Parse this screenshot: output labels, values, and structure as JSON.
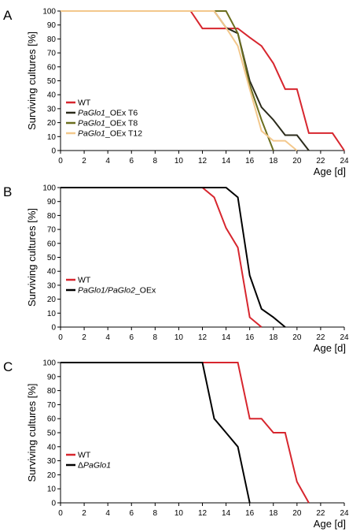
{
  "chart_data": [
    {
      "panel": "A",
      "type": "line",
      "xlabel": "Age [d]",
      "ylabel": "Surviving cultures [%]",
      "xlim": [
        0,
        24
      ],
      "ylim": [
        0,
        100
      ],
      "x_ticks": [
        "0",
        "2",
        "4",
        "6",
        "8",
        "10",
        "12",
        "14",
        "16",
        "18",
        "20",
        "22",
        "24"
      ],
      "y_ticks": [
        "0",
        "10",
        "20",
        "30",
        "40",
        "50",
        "60",
        "70",
        "80",
        "90",
        "100"
      ],
      "legend": "left-lower",
      "series": [
        {
          "name_parts": [
            {
              "text": "WT",
              "italic": false
            }
          ],
          "color": "#d7262e",
          "points": [
            [
              0,
              100
            ],
            [
              11,
              100
            ],
            [
              12,
              87.5
            ],
            [
              14,
              87.5
            ],
            [
              15,
              87.5
            ],
            [
              16,
              81
            ],
            [
              17,
              75
            ],
            [
              18,
              62.5
            ],
            [
              19,
              44
            ],
            [
              20,
              44
            ],
            [
              21,
              12.5
            ],
            [
              23,
              12.5
            ],
            [
              24,
              0
            ]
          ]
        },
        {
          "name_parts": [
            {
              "text": "PaGlo1",
              "italic": true
            },
            {
              "text": "_OEx T6",
              "italic": false
            }
          ],
          "color": "#2b2b1b",
          "points": [
            [
              0,
              100
            ],
            [
              13,
              100
            ],
            [
              14,
              88
            ],
            [
              15,
              84
            ],
            [
              16,
              50
            ],
            [
              17,
              31
            ],
            [
              18,
              22
            ],
            [
              19,
              11
            ],
            [
              20,
              11
            ],
            [
              21,
              0
            ]
          ]
        },
        {
          "name_parts": [
            {
              "text": "PaGlo1",
              "italic": true
            },
            {
              "text": "_OEx T8",
              "italic": false
            }
          ],
          "color": "#6b6e1e",
          "points": [
            [
              0,
              100
            ],
            [
              13,
              100
            ],
            [
              14,
              100
            ],
            [
              15,
              84
            ],
            [
              16,
              47
            ],
            [
              17,
              22
            ],
            [
              18,
              0
            ]
          ]
        },
        {
          "name_parts": [
            {
              "text": "PaGlo1",
              "italic": true
            },
            {
              "text": "_OEx T12",
              "italic": false
            }
          ],
          "color": "#f3c88c",
          "points": [
            [
              0,
              100
            ],
            [
              13,
              100
            ],
            [
              14,
              88
            ],
            [
              15,
              75
            ],
            [
              16,
              44
            ],
            [
              17,
              14
            ],
            [
              18,
              7
            ],
            [
              19,
              7
            ],
            [
              20,
              0
            ]
          ]
        }
      ]
    },
    {
      "panel": "B",
      "type": "line",
      "xlabel": "Age [d]",
      "ylabel": "Surviving cultures [%]",
      "xlim": [
        0,
        24
      ],
      "ylim": [
        0,
        100
      ],
      "x_ticks": [
        "0",
        "2",
        "4",
        "6",
        "8",
        "10",
        "12",
        "14",
        "16",
        "18",
        "20",
        "22",
        "24"
      ],
      "y_ticks": [
        "0",
        "10",
        "20",
        "30",
        "40",
        "50",
        "60",
        "70",
        "80",
        "90",
        "100"
      ],
      "legend": "left-lower",
      "series": [
        {
          "name_parts": [
            {
              "text": "WT",
              "italic": false
            }
          ],
          "color": "#d7262e",
          "points": [
            [
              0,
              100
            ],
            [
              12,
              100
            ],
            [
              13,
              93
            ],
            [
              14,
              71
            ],
            [
              15,
              57
            ],
            [
              16,
              7
            ],
            [
              17,
              0
            ]
          ]
        },
        {
          "name_parts": [
            {
              "text": "PaGlo1/PaGlo2",
              "italic": true
            },
            {
              "text": "_OEx",
              "italic": false
            }
          ],
          "color": "#000000",
          "points": [
            [
              0,
              100
            ],
            [
              14,
              100
            ],
            [
              15,
              93
            ],
            [
              16,
              37
            ],
            [
              17,
              13
            ],
            [
              18,
              7
            ],
            [
              19,
              0
            ]
          ]
        }
      ]
    },
    {
      "panel": "C",
      "type": "line",
      "xlabel": "Age [d]",
      "ylabel": "Surviving cultures [%]",
      "xlim": [
        0,
        24
      ],
      "ylim": [
        0,
        100
      ],
      "x_ticks": [
        "0",
        "2",
        "4",
        "6",
        "8",
        "10",
        "12",
        "14",
        "16",
        "18",
        "20",
        "22",
        "24"
      ],
      "y_ticks": [
        "0",
        "10",
        "20",
        "30",
        "40",
        "50",
        "60",
        "70",
        "80",
        "90",
        "100"
      ],
      "legend": "left-lower",
      "series": [
        {
          "name_parts": [
            {
              "text": "WT",
              "italic": false
            }
          ],
          "color": "#d7262e",
          "points": [
            [
              0,
              100
            ],
            [
              15,
              100
            ],
            [
              16,
              60
            ],
            [
              17,
              60
            ],
            [
              18,
              50
            ],
            [
              19,
              50
            ],
            [
              20,
              15
            ],
            [
              21,
              0
            ]
          ]
        },
        {
          "name_parts": [
            {
              "text": "Δ",
              "italic": false
            },
            {
              "text": "PaGlo1",
              "italic": true
            }
          ],
          "color": "#000000",
          "points": [
            [
              0,
              100
            ],
            [
              12,
              100
            ],
            [
              13,
              60
            ],
            [
              14,
              50
            ],
            [
              15,
              40
            ],
            [
              16,
              0
            ]
          ]
        }
      ]
    }
  ]
}
